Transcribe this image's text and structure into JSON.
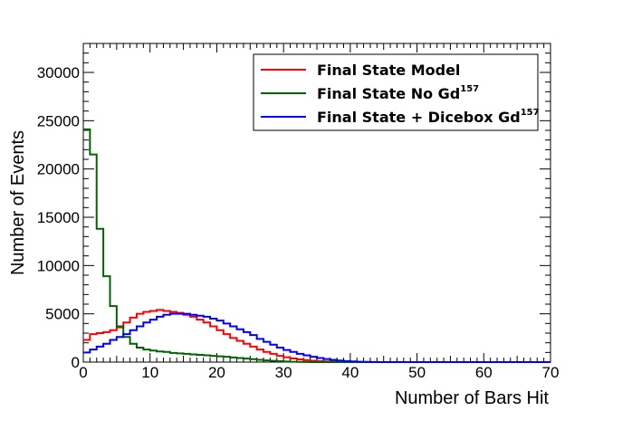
{
  "chart_data": {
    "type": "histogram",
    "xlabel": "Number of Bars Hit",
    "ylabel": "Number of Events",
    "xlim": [
      0,
      70
    ],
    "ylim": [
      0,
      33000
    ],
    "bin_width": 1,
    "x_ticks": [
      0,
      10,
      20,
      30,
      40,
      50,
      60,
      70
    ],
    "x_tick_labels": [
      "0",
      "10",
      "20",
      "30",
      "40",
      "50",
      "60",
      "70"
    ],
    "y_ticks": [
      0,
      5000,
      10000,
      15000,
      20000,
      25000,
      30000
    ],
    "y_tick_labels": [
      "0",
      "5000",
      "10000",
      "15000",
      "20000",
      "25000",
      "30000"
    ],
    "legend_position": "top-right",
    "series": [
      {
        "name": "Final State Model",
        "sup": "",
        "color": "#ff0000",
        "values": [
          2300,
          2900,
          3000,
          3100,
          3300,
          3600,
          4100,
          4600,
          5000,
          5200,
          5300,
          5400,
          5300,
          5200,
          5100,
          4900,
          4700,
          4400,
          4100,
          3700,
          3300,
          2900,
          2500,
          2200,
          1900,
          1600,
          1300,
          1050,
          850,
          650,
          500,
          380,
          280,
          200,
          140,
          100,
          70,
          50,
          30,
          20,
          10,
          5,
          0,
          0,
          0,
          0,
          0,
          0,
          0,
          0,
          0,
          0,
          0,
          0,
          0,
          0,
          0,
          0,
          0,
          0,
          0,
          0,
          0,
          0,
          0,
          0,
          0,
          0,
          0,
          0
        ]
      },
      {
        "name": "Final State No Gd",
        "sup": "157",
        "color": "#006400",
        "values": [
          24100,
          21500,
          13800,
          8900,
          5800,
          3700,
          2600,
          1900,
          1500,
          1300,
          1200,
          1100,
          1050,
          950,
          900,
          850,
          800,
          750,
          700,
          650,
          600,
          550,
          480,
          420,
          360,
          300,
          240,
          180,
          130,
          90,
          60,
          40,
          20,
          10,
          5,
          0,
          0,
          0,
          0,
          0,
          0,
          0,
          0,
          0,
          0,
          0,
          0,
          0,
          0,
          0,
          0,
          0,
          0,
          0,
          0,
          0,
          0,
          0,
          0,
          0,
          0,
          0,
          0,
          0,
          0,
          0,
          0,
          0,
          0,
          0
        ]
      },
      {
        "name": "Final State + Dicebox Gd",
        "sup": "157",
        "color": "#0000ff",
        "values": [
          1000,
          1300,
          1600,
          1900,
          2300,
          2600,
          2900,
          3300,
          3700,
          4100,
          4400,
          4700,
          4900,
          5000,
          5000,
          5000,
          4900,
          4800,
          4700,
          4500,
          4300,
          4000,
          3700,
          3400,
          3100,
          2800,
          2400,
          2100,
          1800,
          1500,
          1250,
          1050,
          850,
          700,
          550,
          420,
          320,
          230,
          160,
          110,
          70,
          40,
          20,
          10,
          5,
          0,
          0,
          0,
          0,
          0,
          0,
          0,
          0,
          0,
          0,
          0,
          0,
          0,
          0,
          0,
          0,
          0,
          0,
          0,
          0,
          0,
          0,
          0,
          0,
          0
        ]
      }
    ]
  }
}
